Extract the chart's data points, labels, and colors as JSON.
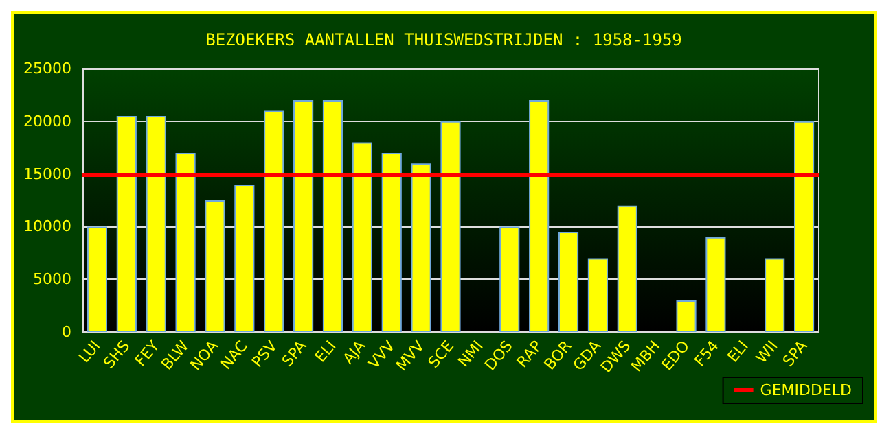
{
  "chart_data": {
    "type": "bar",
    "title": "BEZOEKERS AANTALLEN THUISWEDSTRIJDEN : 1958-1959",
    "categories": [
      "LUI",
      "SHS",
      "FEY",
      "BLW",
      "NOA",
      "NAC",
      "PSV",
      "SPA",
      "ELI",
      "AJA",
      "VVV",
      "MVV",
      "SCE",
      "NMI",
      "DOS",
      "RAP",
      "BOR",
      "GDA",
      "DWS",
      "MBH",
      "EDO",
      "F54",
      "ELI",
      "WII",
      "SPA"
    ],
    "values": [
      10000,
      20500,
      20500,
      17000,
      12500,
      14000,
      21000,
      22000,
      22000,
      18000,
      17000,
      16000,
      20000,
      null,
      10000,
      22000,
      9500,
      7000,
      12000,
      null,
      3000,
      9000,
      null,
      7000,
      20000
    ],
    "color": "#ffff00",
    "ylim": [
      0,
      25000
    ],
    "yticks": [
      0,
      5000,
      10000,
      15000,
      20000,
      25000
    ],
    "grid": "y",
    "ref_lines": [
      {
        "axis": "y",
        "value": 15000,
        "label": "GEMIDDELD",
        "color": "#ff0000"
      }
    ],
    "legend": "bottom right"
  }
}
